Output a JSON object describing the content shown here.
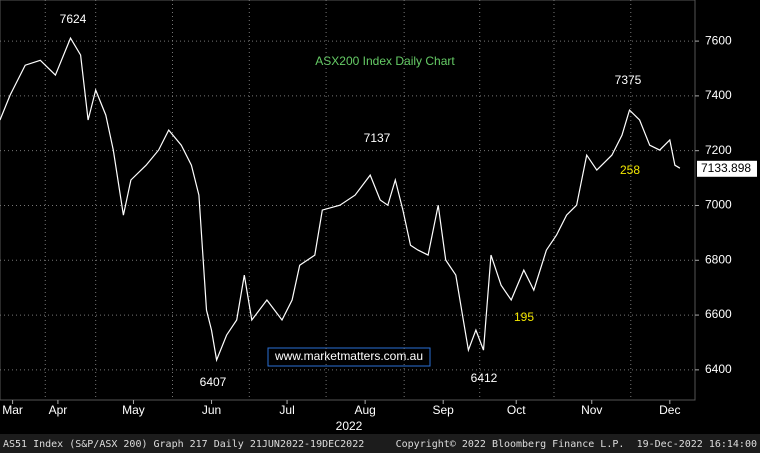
{
  "chart_data": {
    "type": "line",
    "title": "ASX200 Index Daily Chart",
    "watermark": "www.marketmatters.com.au",
    "x": [
      23,
      27,
      33,
      39,
      45,
      51,
      55,
      58,
      61,
      65,
      68,
      72,
      75,
      81,
      86,
      90,
      95,
      99,
      102,
      105,
      107,
      109,
      113,
      117,
      120,
      123,
      129,
      135,
      139,
      142,
      148,
      151,
      158,
      164,
      170,
      174,
      177,
      180,
      183,
      186,
      189,
      193,
      197,
      200,
      204,
      207,
      209,
      212,
      215,
      218,
      222,
      226,
      231,
      235,
      240,
      244,
      248,
      252,
      256,
      260,
      266,
      270,
      273,
      277,
      281,
      285,
      289,
      291,
      293
    ],
    "values": [
      7312,
      7403,
      7512,
      7530,
      7476,
      7611,
      7549,
      7312,
      7421,
      7330,
      7202,
      6965,
      7093,
      7147,
      7202,
      7275,
      7220,
      7147,
      7038,
      6618,
      6545,
      6436,
      6527,
      6582,
      6746,
      6582,
      6655,
      6582,
      6655,
      6782,
      6819,
      6983,
      7001,
      7038,
      7111,
      7020,
      7001,
      7093,
      6983,
      6855,
      6837,
      6819,
      7001,
      6801,
      6746,
      6582,
      6472,
      6545,
      6472,
      6819,
      6709,
      6655,
      6764,
      6691,
      6837,
      6892,
      6965,
      7001,
      7184,
      7129,
      7184,
      7257,
      7348,
      7312,
      7220,
      7202,
      7239,
      7147,
      7136
    ],
    "color": "#ffffff",
    "last_value": 7133.898,
    "xlim": [
      23,
      299
    ],
    "ylim": [
      6290,
      7750
    ],
    "yticks": [
      6400,
      6600,
      6800,
      7000,
      7200,
      7400,
      7600
    ],
    "xticks": [
      {
        "value": 28,
        "label": "Mar"
      },
      {
        "value": 46,
        "label": "Apr"
      },
      {
        "value": 76,
        "label": "May"
      },
      {
        "value": 107,
        "label": "Jun"
      },
      {
        "value": 137,
        "label": "Jul"
      },
      {
        "value": 168,
        "label": "Aug"
      },
      {
        "value": 199,
        "label": "Sep"
      },
      {
        "value": 228,
        "label": "Oct"
      },
      {
        "value": 258,
        "label": "Nov"
      },
      {
        "value": 289,
        "label": "Dec"
      }
    ],
    "year_label": "2022",
    "grid": true,
    "annotations": [
      {
        "text": "7624",
        "color": "#ffffff"
      },
      {
        "text": "7137",
        "color": "#ffffff"
      },
      {
        "text": "6407",
        "color": "#ffffff"
      },
      {
        "text": "6412",
        "color": "#ffffff"
      },
      {
        "text": "7375",
        "color": "#ffffff"
      },
      {
        "text": "195",
        "color": "#f2e600"
      },
      {
        "text": "258",
        "color": "#f2e600"
      }
    ],
    "footer": {
      "left": "AS51 Index (S&P/ASX 200) Graph 217  Daily 21JUN2022-19DEC2022",
      "center": "Copyright© 2022 Bloomberg Finance L.P.",
      "right": "19-Dec-2022 16:14:00"
    }
  }
}
